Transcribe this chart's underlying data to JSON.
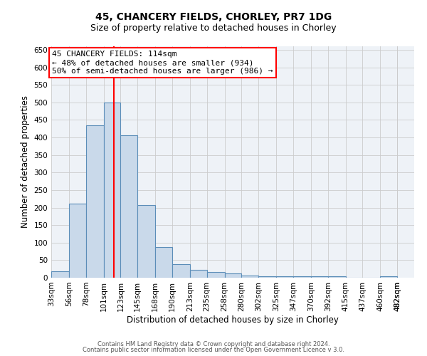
{
  "title1": "45, CHANCERY FIELDS, CHORLEY, PR7 1DG",
  "title2": "Size of property relative to detached houses in Chorley",
  "xlabel": "Distribution of detached houses by size in Chorley",
  "ylabel": "Number of detached properties",
  "bar_edges": [
    33,
    56,
    78,
    101,
    123,
    145,
    168,
    190,
    213,
    235,
    258,
    280,
    302,
    325,
    347,
    370,
    392,
    415,
    437,
    460,
    482
  ],
  "bar_heights": [
    18,
    212,
    435,
    500,
    407,
    207,
    87,
    38,
    22,
    17,
    12,
    6,
    4,
    4,
    4,
    4,
    4,
    0,
    0,
    5
  ],
  "bar_color": "#c9d9ea",
  "bar_edge_color": "#5b8db8",
  "bar_linewidth": 0.8,
  "vline_x": 114,
  "vline_color": "red",
  "vline_linewidth": 1.5,
  "annotation_line1": "45 CHANCERY FIELDS: 114sqm",
  "annotation_line2": "← 48% of detached houses are smaller (934)",
  "annotation_line3": "50% of semi-detached houses are larger (986) →",
  "annotation_box_color": "white",
  "annotation_box_edge_color": "red",
  "ylim": [
    0,
    660
  ],
  "yticks": [
    0,
    50,
    100,
    150,
    200,
    250,
    300,
    350,
    400,
    450,
    500,
    550,
    600,
    650
  ],
  "grid_color": "#cccccc",
  "background_color": "#eef2f7",
  "footer_line1": "Contains HM Land Registry data © Crown copyright and database right 2024.",
  "footer_line2": "Contains public sector information licensed under the Open Government Licence v 3.0.",
  "title1_fontsize": 10,
  "title2_fontsize": 9,
  "xlabel_fontsize": 8.5,
  "ylabel_fontsize": 8.5,
  "tick_fontsize": 7.5,
  "annotation_fontsize": 8,
  "footer_fontsize": 6
}
